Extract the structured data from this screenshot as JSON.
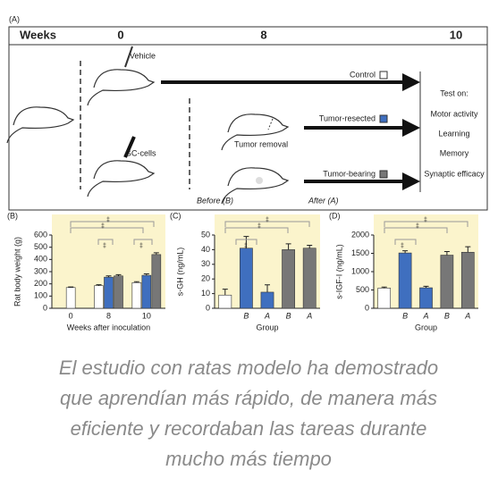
{
  "diagram": {
    "label": "(A)",
    "weeks_label": "Weeks",
    "weeks": [
      "0",
      "8",
      "10"
    ],
    "vehicle": "Vehicle",
    "gc_cells": "GC-cells",
    "tumor_removal": "Tumor removal",
    "before": "Before (B)",
    "after": "After (A)",
    "groups": [
      {
        "label": "Control",
        "color": "#ffffff"
      },
      {
        "label": "Tumor-resected",
        "color": "#3f6fbf"
      },
      {
        "label": "Tumor-bearing",
        "color": "#777777"
      }
    ],
    "test_title": "Test on:",
    "tests": [
      "Motor activity",
      "Learning",
      "Memory",
      "Synaptic efficacy"
    ]
  },
  "chart_data": [
    {
      "type": "bar",
      "title": "(B)",
      "categories": [
        "0",
        "8",
        "10"
      ],
      "series": [
        {
          "color": "#ffffff",
          "values": [
            170,
            185,
            210
          ],
          "errors": [
            5,
            8,
            8
          ]
        },
        {
          "color": "#3f6fbf",
          "values": [
            null,
            255,
            270
          ],
          "errors": [
            null,
            10,
            12
          ]
        },
        {
          "color": "#777777",
          "values": [
            null,
            265,
            440
          ],
          "errors": [
            null,
            10,
            15
          ]
        }
      ],
      "ylim": [
        0,
        600
      ],
      "yticks": [
        0,
        100,
        200,
        300,
        400,
        500,
        600
      ],
      "ylabel": "Rat body weight (g)",
      "xlabel": "Weeks after inoculation",
      "background": "#fbf4cc",
      "annotations": [
        "‡",
        "‡",
        "‡",
        "‡"
      ]
    },
    {
      "type": "bar",
      "title": "(C)",
      "categories": [
        null,
        "B",
        "A",
        "B",
        "A"
      ],
      "values": [
        9,
        41,
        11,
        40,
        41
      ],
      "errors": [
        4,
        8,
        5,
        4,
        2
      ],
      "colors": [
        "#ffffff",
        "#3f6fbf",
        "#3f6fbf",
        "#777777",
        "#777777"
      ],
      "ylim": [
        0,
        50
      ],
      "yticks": [
        0,
        10,
        20,
        30,
        40,
        50
      ],
      "ylabel": "s-GH (ng/mL)",
      "xlabel": "Group",
      "background": "#fbf4cc",
      "annotations": [
        "‡",
        "‡",
        "‡"
      ]
    },
    {
      "type": "bar",
      "title": "(D)",
      "categories": [
        null,
        "B",
        "A",
        "B",
        "A"
      ],
      "values": [
        550,
        1510,
        560,
        1450,
        1530
      ],
      "errors": [
        30,
        60,
        40,
        100,
        150
      ],
      "colors": [
        "#ffffff",
        "#3f6fbf",
        "#3f6fbf",
        "#777777",
        "#777777"
      ],
      "ylim": [
        0,
        2000
      ],
      "yticks": [
        0,
        500,
        1000,
        1500,
        2000
      ],
      "ylabel": "s-IGF-I (ng/mL)",
      "xlabel": "Group",
      "background": "#fbf4cc",
      "annotations": [
        "‡",
        "‡",
        "‡"
      ]
    }
  ],
  "caption": [
    "El estudio con ratas modelo ha demostrado",
    "que aprendían más rápido, de manera más",
    "eficiente y recordaban las tareas durante",
    "mucho más tiempo"
  ]
}
